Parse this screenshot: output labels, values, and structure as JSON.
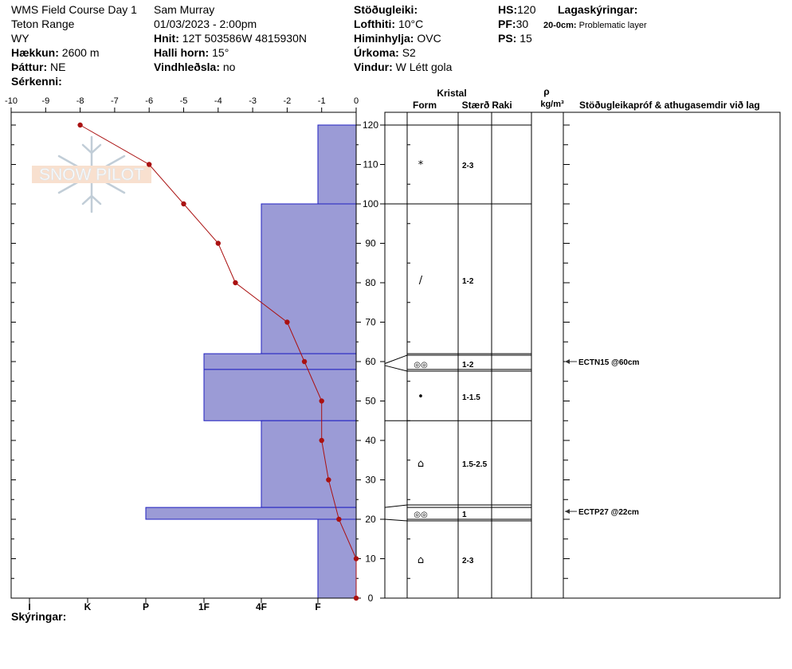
{
  "header": {
    "course": "WMS Field Course Day 1",
    "range": "Teton Range",
    "state": "WY",
    "elevation_label": "Hækkun:",
    "elevation": "2600 m",
    "aspect_label": "Þáttur:",
    "aspect": "NE",
    "features_label": "Sérkenni:",
    "observer": "Sam Murray",
    "datetime": "01/03/2023 - 2:00pm",
    "coords_label": "Hnit:",
    "coords": "12T 503586W 4815930N",
    "slope_label": "Halli horn:",
    "slope": "15°",
    "wind_loading_label": "Vindhleðsla:",
    "wind_loading": "no",
    "stability_label": "Stöðugleiki:",
    "air_temp_label": "Lofthiti:",
    "air_temp": "10°C",
    "sky_label": "Himinhylja:",
    "sky": "OVC",
    "precip_label": "Úrkoma:",
    "precip": "S2",
    "wind_label": "Vindur:",
    "wind": "W Létt gola",
    "hs_label": "HS:",
    "hs": "120",
    "pf_label": "PF:",
    "pf": "30",
    "ps_label": "PS:",
    "ps": "15",
    "layer_notes_label": "Lagaskýringar:",
    "layer_note_range": "20-0cm:",
    "layer_note_text": "Problematic layer"
  },
  "footer": {
    "notes_label": "Skýringar:"
  },
  "logo": {
    "text": "SNOW PILOT"
  },
  "columns": {
    "crystal": "Kristal",
    "form": "Form",
    "size": "Stærð",
    "moisture": "Raki",
    "density_symbol": "ρ",
    "density_unit": "kg/m³",
    "tests": "Stöðugleikapróf & athugasemdir við lag"
  },
  "colors": {
    "hardness_fill": "#9b9bd6",
    "hardness_stroke": "#2020c0",
    "temp_line": "#aa1111"
  },
  "chart_data": {
    "type": "line",
    "xlabel": "",
    "ylabel": "",
    "temperature_axis": {
      "min": -10,
      "max": 0,
      "ticks": [
        "-10",
        "-9",
        "-8",
        "-7",
        "-6",
        "-5",
        "-4",
        "-3",
        "-2",
        "-1",
        "0"
      ]
    },
    "height_axis": {
      "min": 0,
      "max": 120,
      "ticks": [
        "0",
        "10",
        "20",
        "30",
        "40",
        "50",
        "60",
        "70",
        "80",
        "90",
        "100",
        "110",
        "120"
      ]
    },
    "hardness_scale": [
      "I",
      "K",
      "P",
      "1F",
      "4F",
      "F"
    ],
    "temperature_profile": [
      {
        "height": 120,
        "temp": -8
      },
      {
        "height": 110,
        "temp": -6
      },
      {
        "height": 100,
        "temp": -5
      },
      {
        "height": 90,
        "temp": -4
      },
      {
        "height": 80,
        "temp": -3.5
      },
      {
        "height": 70,
        "temp": -2
      },
      {
        "height": 60,
        "temp": -1.5
      },
      {
        "height": 50,
        "temp": -1
      },
      {
        "height": 40,
        "temp": -1
      },
      {
        "height": 30,
        "temp": -0.8
      },
      {
        "height": 20,
        "temp": -0.5
      },
      {
        "height": 10,
        "temp": 0
      },
      {
        "height": 0,
        "temp": 0
      }
    ],
    "layers": [
      {
        "top": 120,
        "bottom": 100,
        "hardness": "F",
        "form": "*",
        "size": "2-3"
      },
      {
        "top": 100,
        "bottom": 62,
        "hardness": "4F",
        "form": "/",
        "size": "1-2"
      },
      {
        "top": 62,
        "bottom": 58,
        "hardness": "1F",
        "form": "◎◎",
        "size": "1-2"
      },
      {
        "top": 58,
        "bottom": 45,
        "hardness": "1F",
        "form": "•",
        "size": "1-1.5"
      },
      {
        "top": 45,
        "bottom": 23,
        "hardness": "4F",
        "form": "⌂",
        "size": "1.5-2.5"
      },
      {
        "top": 23,
        "bottom": 20,
        "hardness": "P",
        "form": "◎◎",
        "size": "1"
      },
      {
        "top": 20,
        "bottom": 0,
        "hardness": "F",
        "form": "⌂",
        "size": "2-3"
      }
    ],
    "tests": [
      {
        "height": 60,
        "label": "ECTN15 @60cm"
      },
      {
        "height": 22,
        "label": "ECTP27 @22cm"
      }
    ]
  }
}
